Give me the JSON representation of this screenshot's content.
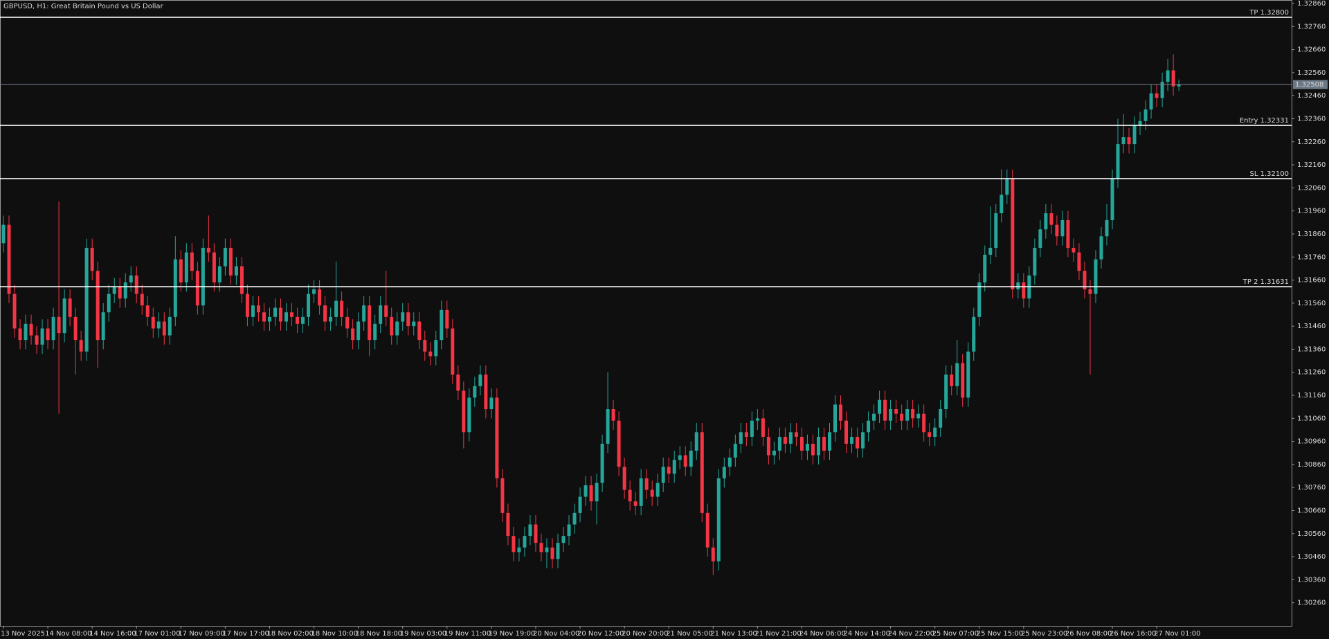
{
  "chart_data": {
    "type": "candlestick",
    "title": "GBPUSD, H1:  Great Britain Pound vs US Dollar",
    "up_color": "#26a69a",
    "down_color": "#f23645",
    "categories": [
      "13 Nov 2025",
      null,
      null,
      null,
      null,
      null,
      null,
      null,
      "14 Nov 08:00",
      null,
      null,
      null,
      null,
      null,
      null,
      null,
      "14 Nov 16:00",
      null,
      null,
      null,
      null,
      null,
      null,
      null,
      "17 Nov 01:00",
      null,
      null,
      null,
      null,
      null,
      null,
      null,
      "17 Nov 09:00",
      null,
      null,
      null,
      null,
      null,
      null,
      null,
      "17 Nov 17:00",
      null,
      null,
      null,
      null,
      null,
      null,
      null,
      "18 Nov 02:00",
      null,
      null,
      null,
      null,
      null,
      null,
      null,
      "18 Nov 10:00",
      null,
      null,
      null,
      null,
      null,
      null,
      null,
      "18 Nov 18:00",
      null,
      null,
      null,
      null,
      null,
      null,
      null,
      "19 Nov 03:00",
      null,
      null,
      null,
      null,
      null,
      null,
      null,
      "19 Nov 11:00",
      null,
      null,
      null,
      null,
      null,
      null,
      null,
      "19 Nov 19:00",
      null,
      null,
      null,
      null,
      null,
      null,
      null,
      "20 Nov 04:00",
      null,
      null,
      null,
      null,
      null,
      null,
      null,
      "20 Nov 12:00",
      null,
      null,
      null,
      null,
      null,
      null,
      null,
      "20 Nov 20:00",
      null,
      null,
      null,
      null,
      null,
      null,
      null,
      "21 Nov 05:00",
      null,
      null,
      null,
      null,
      null,
      null,
      null,
      "21 Nov 13:00",
      null,
      null,
      null,
      null,
      null,
      null,
      null,
      "21 Nov 21:00",
      null,
      null,
      null,
      null,
      null,
      null,
      null,
      "24 Nov 06:00",
      null,
      null,
      null,
      null,
      null,
      null,
      null,
      "24 Nov 14:00",
      null,
      null,
      null,
      null,
      null,
      null,
      null,
      "24 Nov 22:00",
      null,
      null,
      null,
      null,
      null,
      null,
      null,
      "25 Nov 07:00",
      null,
      null,
      null,
      null,
      null,
      null,
      null,
      "25 Nov 15:00",
      null,
      null,
      null,
      null,
      null,
      null,
      null,
      "25 Nov 23:00",
      null,
      null,
      null,
      null,
      null,
      null,
      null,
      "26 Nov 08:00",
      null,
      null,
      null,
      null,
      null,
      null,
      null,
      "26 Nov 16:00",
      null,
      null,
      null,
      null,
      null,
      null,
      null,
      "27 Nov 01:00",
      null,
      null,
      null,
      null
    ],
    "open": [
      1.3182,
      1.319,
      1.316,
      1.3145,
      1.314,
      1.3147,
      1.3142,
      1.3138,
      1.3145,
      1.314,
      1.315,
      1.3143,
      1.3158,
      1.315,
      1.314,
      1.3135,
      1.318,
      1.317,
      1.314,
      1.3152,
      1.316,
      1.3163,
      1.3158,
      1.3165,
      1.3168,
      1.316,
      1.3155,
      1.315,
      1.3145,
      1.3148,
      1.3142,
      1.315,
      1.3175,
      1.3165,
      1.3178,
      1.317,
      1.3155,
      1.318,
      1.3178,
      1.3165,
      1.3172,
      1.318,
      1.3168,
      1.3172,
      1.316,
      1.315,
      1.3155,
      1.3152,
      1.3148,
      1.315,
      1.3154,
      1.3148,
      1.3152,
      1.315,
      1.3147,
      1.315,
      1.316,
      1.3162,
      1.3155,
      1.3148,
      1.315,
      1.3157,
      1.315,
      1.3145,
      1.314,
      1.3148,
      1.3155,
      1.314,
      1.3147,
      1.3155,
      1.315,
      1.3142,
      1.3148,
      1.3152,
      1.3146,
      1.3148,
      1.314,
      1.3135,
      1.3133,
      1.314,
      1.3153,
      1.3145,
      1.3125,
      1.3118,
      1.31,
      1.3115,
      1.312,
      1.3125,
      1.311,
      1.3115,
      1.308,
      1.3065,
      1.3055,
      1.3048,
      1.305,
      1.3055,
      1.306,
      1.3052,
      1.3048,
      1.305,
      1.3045,
      1.3052,
      1.3055,
      1.306,
      1.3065,
      1.3072,
      1.3077,
      1.307,
      1.3078,
      1.3095,
      1.311,
      1.3105,
      1.3085,
      1.3075,
      1.307,
      1.3068,
      1.308,
      1.3075,
      1.3072,
      1.3078,
      1.3085,
      1.3082,
      1.3088,
      1.309,
      1.3085,
      1.3092,
      1.31,
      1.3065,
      1.305,
      1.3044,
      1.308,
      1.3085,
      1.3089,
      1.3095,
      1.31,
      1.3098,
      1.3105,
      1.3106,
      1.3098,
      1.309,
      1.3092,
      1.3098,
      1.3095,
      1.31,
      1.3098,
      1.3092,
      1.3095,
      1.309,
      1.3098,
      1.3092,
      1.31,
      1.3112,
      1.3105,
      1.3095,
      1.3098,
      1.3093,
      1.31,
      1.3105,
      1.3108,
      1.3114,
      1.3105,
      1.311,
      1.3108,
      1.3105,
      1.311,
      1.3106,
      1.3108,
      1.31,
      1.3098,
      1.3102,
      1.311,
      1.3125,
      1.312,
      1.313,
      1.3115,
      1.3135,
      1.315,
      1.3165,
      1.3177,
      1.318,
      1.3195,
      1.3203,
      1.321,
      1.3162,
      1.3165,
      1.3158,
      1.3168,
      1.318,
      1.3188,
      1.3195,
      1.319,
      1.3185,
      1.3192,
      1.318,
      1.3178,
      1.317,
      1.3162,
      1.316,
      1.3175,
      1.3185,
      1.3192,
      1.321,
      1.3225,
      1.3228,
      1.3225,
      1.3233,
      1.3235,
      1.324,
      1.3247,
      1.3245,
      1.3252,
      1.3257,
      1.325
    ],
    "high": [
      1.3194,
      1.3194,
      1.3164,
      1.3149,
      1.3151,
      1.3151,
      1.3146,
      1.3149,
      1.3149,
      1.3154,
      1.32,
      1.3162,
      1.3162,
      1.3154,
      1.3144,
      1.3184,
      1.3184,
      1.3174,
      1.3156,
      1.3164,
      1.3167,
      1.3167,
      1.3169,
      1.3172,
      1.3172,
      1.3164,
      1.3159,
      1.3154,
      1.3152,
      1.3152,
      1.3154,
      1.3185,
      1.3179,
      1.3182,
      1.3182,
      1.3174,
      1.3184,
      1.3194,
      1.3182,
      1.3176,
      1.3184,
      1.3184,
      1.3176,
      1.3176,
      1.3164,
      1.3159,
      1.3159,
      1.3156,
      1.3154,
      1.3158,
      1.3158,
      1.3156,
      1.3156,
      1.3154,
      1.3154,
      1.3164,
      1.3166,
      1.3166,
      1.3159,
      1.3154,
      1.3174,
      1.3161,
      1.3154,
      1.3149,
      1.3152,
      1.3159,
      1.3159,
      1.3151,
      1.3159,
      1.317,
      1.3154,
      1.3152,
      1.3156,
      1.3156,
      1.3152,
      1.3152,
      1.3144,
      1.3139,
      1.3144,
      1.3157,
      1.3157,
      1.3149,
      1.3129,
      1.3122,
      1.3119,
      1.3124,
      1.3129,
      1.3129,
      1.3119,
      1.3119,
      1.3084,
      1.3069,
      1.3059,
      1.3054,
      1.3059,
      1.3064,
      1.3064,
      1.3056,
      1.3054,
      1.3054,
      1.3056,
      1.3059,
      1.3064,
      1.3069,
      1.3076,
      1.3081,
      1.3081,
      1.3082,
      1.3099,
      1.3126,
      1.3114,
      1.3109,
      1.3089,
      1.3079,
      1.3074,
      1.3084,
      1.3084,
      1.3079,
      1.3082,
      1.3089,
      1.3089,
      1.3092,
      1.3094,
      1.3094,
      1.3096,
      1.3104,
      1.3104,
      1.3069,
      1.3054,
      1.3084,
      1.3089,
      1.3093,
      1.3099,
      1.3104,
      1.3104,
      1.3109,
      1.311,
      1.311,
      1.3102,
      1.3096,
      1.3102,
      1.3102,
      1.3104,
      1.3104,
      1.3102,
      1.3099,
      1.3099,
      1.3102,
      1.3102,
      1.3104,
      1.3116,
      1.3116,
      1.3109,
      1.3102,
      1.3102,
      1.3104,
      1.3109,
      1.3112,
      1.3118,
      1.3118,
      1.3114,
      1.3114,
      1.3112,
      1.3114,
      1.3114,
      1.3112,
      1.3112,
      1.3104,
      1.3106,
      1.3114,
      1.3129,
      1.3129,
      1.314,
      1.3134,
      1.3139,
      1.3154,
      1.3169,
      1.3181,
      1.3198,
      1.3199,
      1.3214,
      1.3214,
      1.3214,
      1.3169,
      1.3169,
      1.3172,
      1.3184,
      1.3192,
      1.3199,
      1.3199,
      1.3194,
      1.3196,
      1.3196,
      1.3184,
      1.3182,
      1.3174,
      1.3166,
      1.3179,
      1.3189,
      1.3199,
      1.3214,
      1.3236,
      1.3238,
      1.3232,
      1.3237,
      1.3239,
      1.3244,
      1.3251,
      1.3251,
      1.3256,
      1.3262,
      1.3264,
      1.3253
    ],
    "low": [
      1.3178,
      1.3156,
      1.3141,
      1.3136,
      1.3136,
      1.3138,
      1.3134,
      1.3134,
      1.3136,
      1.3136,
      1.3108,
      1.3139,
      1.3146,
      1.3125,
      1.3131,
      1.3131,
      1.3166,
      1.3128,
      1.3136,
      1.3148,
      1.3156,
      1.3154,
      1.3154,
      1.3161,
      1.3156,
      1.3151,
      1.3146,
      1.3141,
      1.3141,
      1.3138,
      1.3138,
      1.3146,
      1.3161,
      1.3161,
      1.3166,
      1.3151,
      1.3151,
      1.3174,
      1.3161,
      1.3161,
      1.3168,
      1.3164,
      1.3164,
      1.3156,
      1.3146,
      1.3146,
      1.3148,
      1.3144,
      1.3144,
      1.3146,
      1.3144,
      1.3144,
      1.3146,
      1.3143,
      1.3143,
      1.3146,
      1.3156,
      1.3151,
      1.3144,
      1.3144,
      1.3146,
      1.3146,
      1.3141,
      1.3136,
      1.3136,
      1.3144,
      1.3133,
      1.3136,
      1.3143,
      1.3146,
      1.3138,
      1.3138,
      1.3144,
      1.3142,
      1.3142,
      1.3136,
      1.3131,
      1.3129,
      1.3129,
      1.3136,
      1.3141,
      1.3121,
      1.3114,
      1.3093,
      1.3096,
      1.3111,
      1.3116,
      1.3106,
      1.3106,
      1.3076,
      1.3061,
      1.3051,
      1.3044,
      1.3044,
      1.3046,
      1.3051,
      1.3048,
      1.3044,
      1.3041,
      1.3041,
      1.3041,
      1.3048,
      1.3051,
      1.3056,
      1.3061,
      1.3068,
      1.3066,
      1.306,
      1.3074,
      1.3091,
      1.3101,
      1.3081,
      1.3071,
      1.3066,
      1.3064,
      1.3064,
      1.3071,
      1.3068,
      1.3068,
      1.3074,
      1.3078,
      1.3078,
      1.3084,
      1.3081,
      1.3081,
      1.3088,
      1.3061,
      1.3046,
      1.3038,
      1.304,
      1.3076,
      1.3081,
      1.3085,
      1.3091,
      1.3094,
      1.3094,
      1.3101,
      1.3094,
      1.3086,
      1.3086,
      1.3088,
      1.3091,
      1.3091,
      1.3094,
      1.3088,
      1.3088,
      1.3086,
      1.3086,
      1.3088,
      1.3088,
      1.3096,
      1.3101,
      1.3091,
      1.3091,
      1.3089,
      1.3089,
      1.3096,
      1.3101,
      1.3104,
      1.3101,
      1.3101,
      1.3104,
      1.3101,
      1.3101,
      1.3102,
      1.3102,
      1.3096,
      1.3094,
      1.3094,
      1.3098,
      1.3106,
      1.3116,
      1.3116,
      1.3111,
      1.3111,
      1.3131,
      1.3146,
      1.3161,
      1.3173,
      1.3176,
      1.3191,
      1.3199,
      1.3158,
      1.3158,
      1.3154,
      1.3154,
      1.3164,
      1.3176,
      1.3184,
      1.3186,
      1.3181,
      1.3181,
      1.3176,
      1.3174,
      1.3166,
      1.3158,
      1.3125,
      1.3156,
      1.3171,
      1.3181,
      1.3188,
      1.3206,
      1.3221,
      1.3221,
      1.3221,
      1.3229,
      1.3231,
      1.3236,
      1.3241,
      1.3241,
      1.3248,
      1.3246,
      1.3248
    ],
    "close": [
      1.319,
      1.316,
      1.3145,
      1.314,
      1.3147,
      1.3142,
      1.3138,
      1.3145,
      1.314,
      1.315,
      1.3143,
      1.3158,
      1.315,
      1.314,
      1.3135,
      1.318,
      1.317,
      1.314,
      1.3152,
      1.316,
      1.3163,
      1.3158,
      1.3165,
      1.3168,
      1.316,
      1.3155,
      1.315,
      1.3145,
      1.3148,
      1.3142,
      1.315,
      1.3175,
      1.3165,
      1.3178,
      1.317,
      1.3155,
      1.318,
      1.3178,
      1.3165,
      1.3172,
      1.318,
      1.3168,
      1.3172,
      1.316,
      1.315,
      1.3155,
      1.3152,
      1.3148,
      1.315,
      1.3154,
      1.3148,
      1.3152,
      1.315,
      1.3147,
      1.315,
      1.316,
      1.3162,
      1.3155,
      1.3148,
      1.315,
      1.3157,
      1.315,
      1.3145,
      1.314,
      1.3148,
      1.3155,
      1.314,
      1.3147,
      1.3155,
      1.315,
      1.3142,
      1.3148,
      1.3152,
      1.3146,
      1.3148,
      1.314,
      1.3135,
      1.3133,
      1.314,
      1.3153,
      1.3145,
      1.3125,
      1.3118,
      1.31,
      1.3115,
      1.312,
      1.3125,
      1.311,
      1.3115,
      1.308,
      1.3065,
      1.3055,
      1.3048,
      1.305,
      1.3055,
      1.306,
      1.3052,
      1.3048,
      1.305,
      1.3045,
      1.3052,
      1.3055,
      1.306,
      1.3065,
      1.3072,
      1.3077,
      1.307,
      1.3078,
      1.3095,
      1.311,
      1.3105,
      1.3085,
      1.3075,
      1.307,
      1.3068,
      1.308,
      1.3075,
      1.3072,
      1.3078,
      1.3085,
      1.3082,
      1.3088,
      1.309,
      1.3085,
      1.3092,
      1.31,
      1.3065,
      1.305,
      1.3044,
      1.308,
      1.3085,
      1.3089,
      1.3095,
      1.31,
      1.3098,
      1.3105,
      1.3106,
      1.3098,
      1.309,
      1.3092,
      1.3098,
      1.3095,
      1.31,
      1.3098,
      1.3092,
      1.3095,
      1.309,
      1.3098,
      1.3092,
      1.31,
      1.3112,
      1.3105,
      1.3095,
      1.3098,
      1.3093,
      1.31,
      1.3105,
      1.3108,
      1.3114,
      1.3105,
      1.311,
      1.3108,
      1.3105,
      1.311,
      1.3106,
      1.3108,
      1.31,
      1.3098,
      1.3102,
      1.311,
      1.3125,
      1.312,
      1.313,
      1.3115,
      1.3135,
      1.315,
      1.3165,
      1.3177,
      1.318,
      1.3195,
      1.3203,
      1.321,
      1.3162,
      1.3165,
      1.3158,
      1.3168,
      1.318,
      1.3188,
      1.3195,
      1.319,
      1.3185,
      1.3192,
      1.318,
      1.3178,
      1.317,
      1.3162,
      1.316,
      1.3175,
      1.3185,
      1.3192,
      1.321,
      1.3225,
      1.3228,
      1.3225,
      1.3233,
      1.3235,
      1.324,
      1.3247,
      1.3245,
      1.3252,
      1.3257,
      1.325,
      1.3251
    ],
    "ylim": [
      1.3016,
      1.32875
    ],
    "yticks": [
      {
        "value": 1.3286,
        "label": "1.32860"
      },
      {
        "value": 1.3276,
        "label": "1.32760"
      },
      {
        "value": 1.3266,
        "label": "1.32660"
      },
      {
        "value": 1.3256,
        "label": "1.32560"
      },
      {
        "value": 1.3246,
        "label": "1.32460"
      },
      {
        "value": 1.3236,
        "label": "1.32360"
      },
      {
        "value": 1.3226,
        "label": "1.32260"
      },
      {
        "value": 1.3216,
        "label": "1.32160"
      },
      {
        "value": 1.3206,
        "label": "1.32060"
      },
      {
        "value": 1.3196,
        "label": "1.31960"
      },
      {
        "value": 1.3186,
        "label": "1.31860"
      },
      {
        "value": 1.3176,
        "label": "1.31760"
      },
      {
        "value": 1.3166,
        "label": "1.31660"
      },
      {
        "value": 1.3156,
        "label": "1.31560"
      },
      {
        "value": 1.3146,
        "label": "1.31460"
      },
      {
        "value": 1.3136,
        "label": "1.31360"
      },
      {
        "value": 1.3126,
        "label": "1.31260"
      },
      {
        "value": 1.3116,
        "label": "1.31160"
      },
      {
        "value": 1.3106,
        "label": "1.31060"
      },
      {
        "value": 1.3096,
        "label": "1.30960"
      },
      {
        "value": 1.3086,
        "label": "1.30860"
      },
      {
        "value": 1.3076,
        "label": "1.30760"
      },
      {
        "value": 1.3066,
        "label": "1.30660"
      },
      {
        "value": 1.3056,
        "label": "1.30560"
      },
      {
        "value": 1.3046,
        "label": "1.30460"
      },
      {
        "value": 1.3036,
        "label": "1.30360"
      },
      {
        "value": 1.3026,
        "label": "1.30260"
      }
    ],
    "levels": [
      {
        "value": 1.328,
        "label": "TP 1.32800"
      },
      {
        "value": 1.32331,
        "label": "Entry 1.32331"
      },
      {
        "value": 1.321,
        "label": "SL 1.32100"
      },
      {
        "value": 1.31631,
        "label": "TP 2 1.31631"
      }
    ],
    "bid": {
      "value": 1.32508,
      "label": "1.32508"
    }
  }
}
